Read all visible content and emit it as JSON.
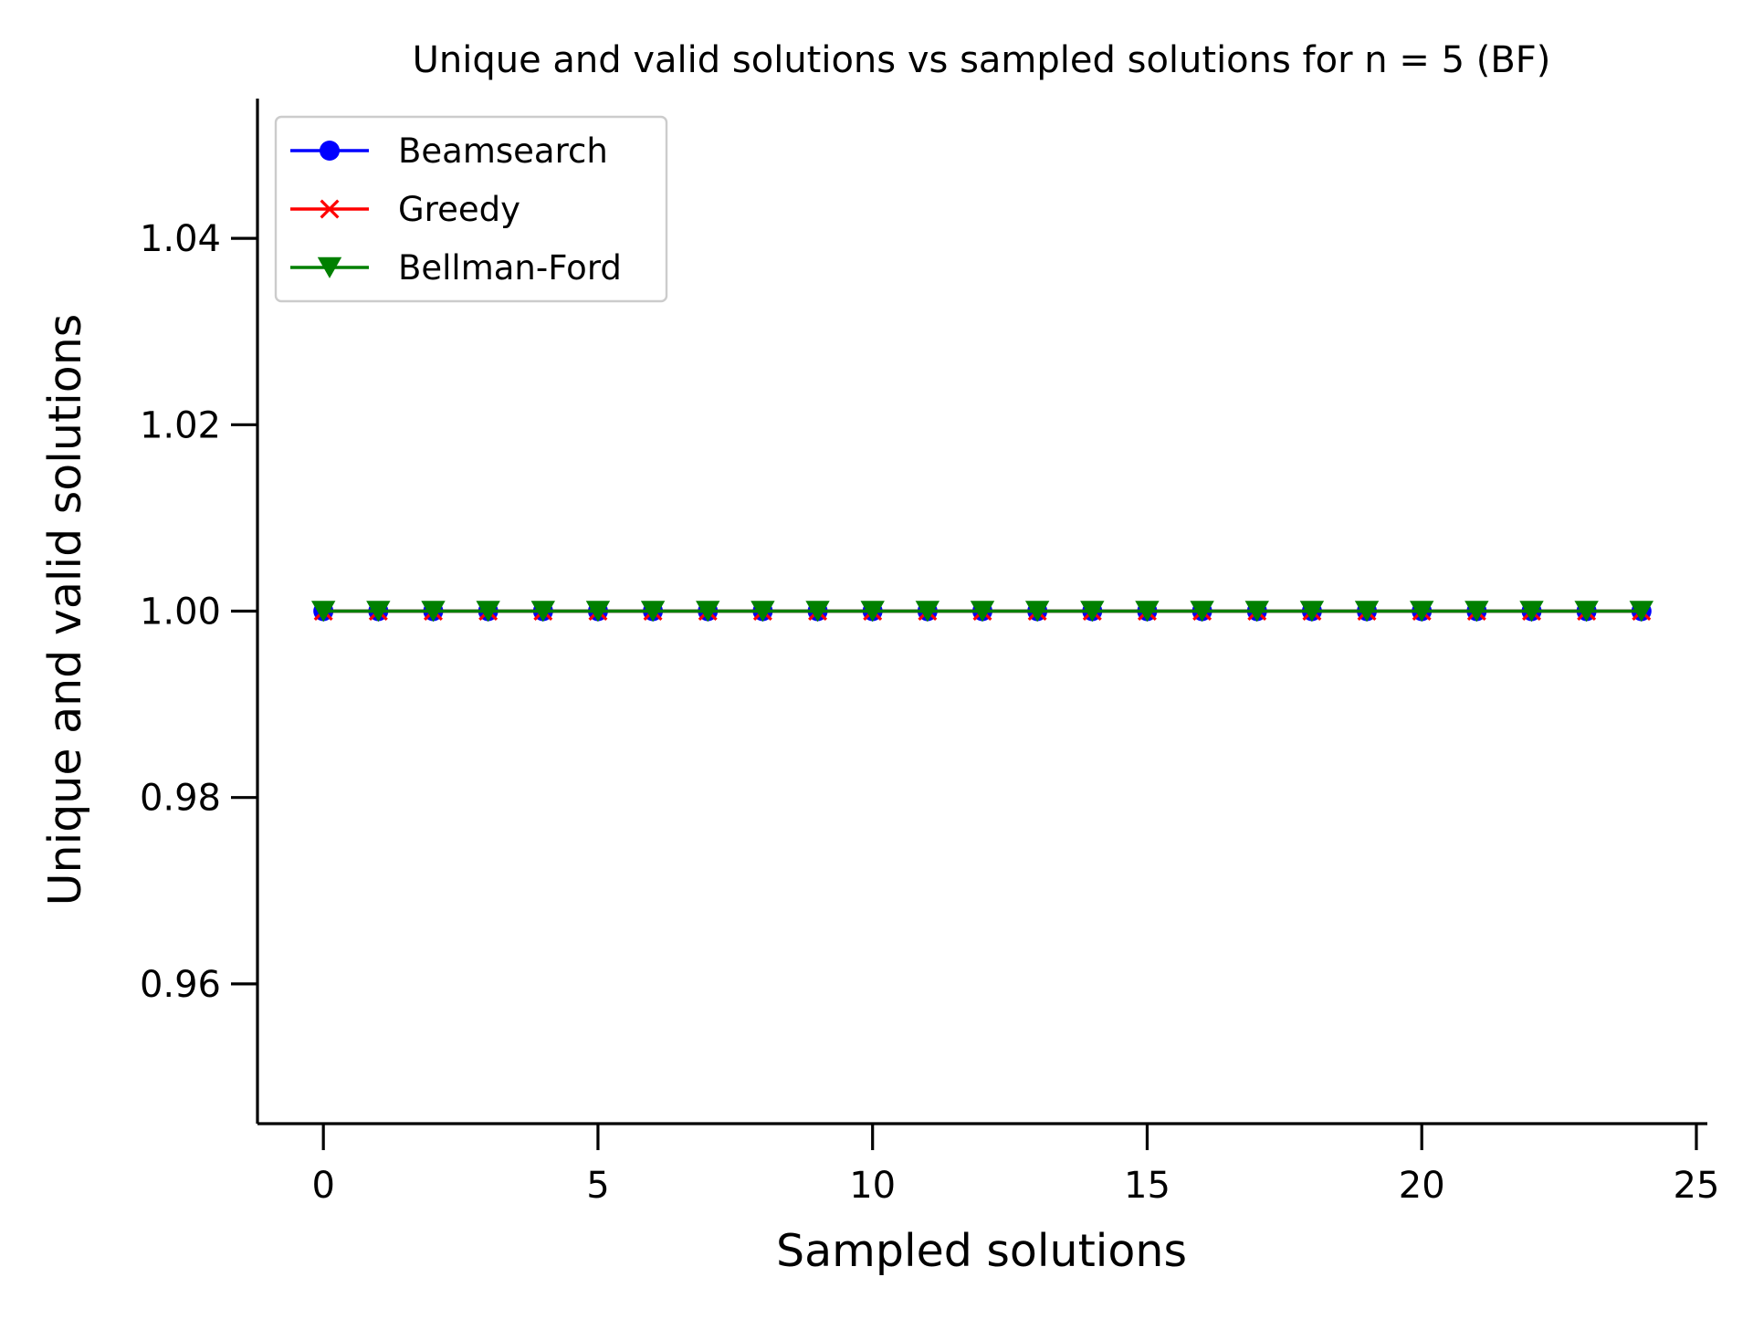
{
  "chart_data": {
    "type": "line",
    "title": "Unique and valid solutions vs sampled solutions for n = 5 (BF)",
    "xlabel": "Sampled solutions",
    "ylabel": "Unique and valid solutions",
    "xlim": [
      -1.2,
      25.2
    ],
    "ylim": [
      0.945,
      1.055
    ],
    "xticks": [
      0,
      5,
      10,
      15,
      20,
      25
    ],
    "xtick_labels": [
      "0",
      "5",
      "10",
      "15",
      "20",
      "25"
    ],
    "yticks": [
      0.96,
      0.98,
      1.0,
      1.02,
      1.04
    ],
    "ytick_labels": [
      "0.96",
      "0.98",
      "1.00",
      "1.02",
      "1.04"
    ],
    "grid": false,
    "legend_position": "top-left",
    "x": [
      0,
      1,
      2,
      3,
      4,
      5,
      6,
      7,
      8,
      9,
      10,
      11,
      12,
      13,
      14,
      15,
      16,
      17,
      18,
      19,
      20,
      21,
      22,
      23,
      24
    ],
    "series": [
      {
        "name": "Beamsearch",
        "color": "#0000ff",
        "marker": "circle",
        "values": [
          1,
          1,
          1,
          1,
          1,
          1,
          1,
          1,
          1,
          1,
          1,
          1,
          1,
          1,
          1,
          1,
          1,
          1,
          1,
          1,
          1,
          1,
          1,
          1,
          1
        ]
      },
      {
        "name": "Greedy",
        "color": "#ff0000",
        "marker": "x",
        "values": [
          1,
          1,
          1,
          1,
          1,
          1,
          1,
          1,
          1,
          1,
          1,
          1,
          1,
          1,
          1,
          1,
          1,
          1,
          1,
          1,
          1,
          1,
          1,
          1,
          1
        ]
      },
      {
        "name": "Bellman-Ford",
        "color": "#008000",
        "marker": "triangle-down",
        "values": [
          1,
          1,
          1,
          1,
          1,
          1,
          1,
          1,
          1,
          1,
          1,
          1,
          1,
          1,
          1,
          1,
          1,
          1,
          1,
          1,
          1,
          1,
          1,
          1,
          1
        ]
      }
    ]
  }
}
